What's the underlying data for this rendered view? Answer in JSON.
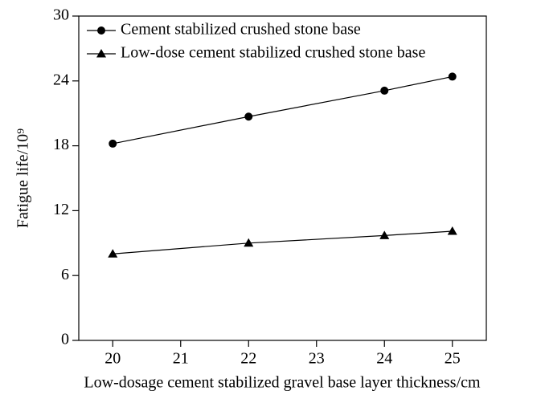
{
  "chart_data": {
    "type": "line",
    "xlabel": "Low-dosage cement stabilized gravel base layer thickness/cm",
    "ylabel": "Fatigue life/10⁹",
    "x": [
      20,
      22,
      24,
      25
    ],
    "series": [
      {
        "name": "Cement stabilized crushed stone base",
        "color": "#000000",
        "marker": "circle",
        "values": [
          18.2,
          20.7,
          23.1,
          24.4
        ]
      },
      {
        "name": "Low-dose cement stabilized crushed stone base",
        "color": "#000000",
        "marker": "triangle",
        "values": [
          8.0,
          9.0,
          9.7,
          10.1
        ]
      }
    ],
    "xlim": [
      19.5,
      25.5
    ],
    "xticks": [
      20,
      21,
      22,
      23,
      24,
      25
    ],
    "ylim": [
      0,
      30
    ],
    "yticks": [
      0,
      6,
      12,
      18,
      24,
      30
    ],
    "grid": false,
    "legend": "upper left"
  }
}
